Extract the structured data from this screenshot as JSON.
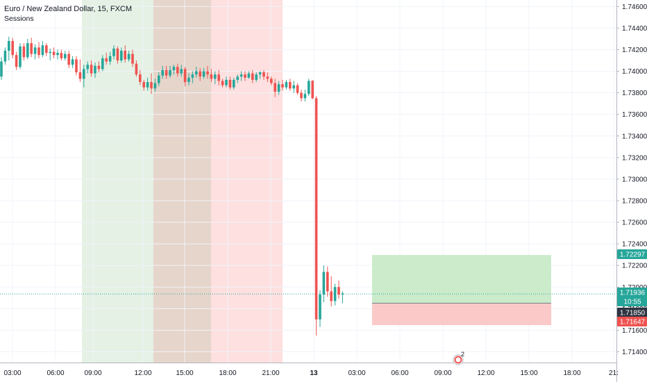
{
  "header": {
    "symbol_line": "Euro / New Zealand Dollar, 15, FXCM",
    "indicator": "Sessions"
  },
  "colors": {
    "up": "#26a69a",
    "down": "#ef5350",
    "session_asia": "#e4f1e4",
    "session_overlap": "#e6d5cb",
    "session_london": "#fde0df",
    "position_profit": "#cbebcb",
    "position_loss": "#fcc9c9"
  },
  "price_tags": [
    {
      "label": "1.72297",
      "value": 1.72297,
      "bg": "#26a69a"
    },
    {
      "label": "1.71936",
      "value": 1.71936,
      "bg": "#26a69a"
    },
    {
      "label": "10:55",
      "value": 1.71886,
      "bg": "#26a69a"
    },
    {
      "label": "1.71850",
      "value": 1.7185,
      "bg": "#2e3441"
    },
    {
      "label": "1.71647",
      "value": 1.71647,
      "bg": "#ef5350"
    }
  ],
  "marker_badge": "2",
  "chart_data": {
    "type": "candlestick",
    "timeframe": "15",
    "y_axis_ticks": [
      "1.74600",
      "1.74400",
      "1.74200",
      "1.74000",
      "1.73800",
      "1.73600",
      "1.73400",
      "1.73200",
      "1.73000",
      "1.72800",
      "1.72600",
      "1.72400",
      "1.72200",
      "1.72000",
      "1.71800",
      "1.71600",
      "1.71400"
    ],
    "x_axis_ticks": [
      "03:00",
      "06:00",
      "09:00",
      "12:00",
      "15:00",
      "18:00",
      "21:00",
      "13",
      "03:00",
      "06:00",
      "09:00",
      "12:00",
      "15:00",
      "18:00",
      "21:"
    ],
    "ylim": [
      1.713,
      1.7466
    ],
    "last_price": 1.71936,
    "candles": [
      [
        1.7395,
        1.7413,
        1.7392,
        1.7409
      ],
      [
        1.7409,
        1.7422,
        1.7406,
        1.7419
      ],
      [
        1.7419,
        1.7432,
        1.741,
        1.7428
      ],
      [
        1.7428,
        1.7431,
        1.7412,
        1.7415
      ],
      [
        1.7415,
        1.7418,
        1.7401,
        1.7404
      ],
      [
        1.7404,
        1.7426,
        1.7402,
        1.7423
      ],
      [
        1.7423,
        1.7426,
        1.741,
        1.7413
      ],
      [
        1.7413,
        1.743,
        1.7411,
        1.7426
      ],
      [
        1.7426,
        1.7431,
        1.7413,
        1.7416
      ],
      [
        1.7416,
        1.7425,
        1.7411,
        1.7422
      ],
      [
        1.7422,
        1.7427,
        1.7412,
        1.7415
      ],
      [
        1.7415,
        1.7428,
        1.7413,
        1.7424
      ],
      [
        1.7424,
        1.7426,
        1.7414,
        1.7417
      ],
      [
        1.7417,
        1.7421,
        1.741,
        1.7418
      ],
      [
        1.7418,
        1.7422,
        1.7412,
        1.7415
      ],
      [
        1.7415,
        1.742,
        1.7411,
        1.7417
      ],
      [
        1.7417,
        1.742,
        1.741,
        1.7412
      ],
      [
        1.7412,
        1.7419,
        1.741,
        1.7416
      ],
      [
        1.7416,
        1.7419,
        1.7403,
        1.7406
      ],
      [
        1.7406,
        1.7414,
        1.7403,
        1.7411
      ],
      [
        1.7411,
        1.7414,
        1.7396,
        1.7399
      ],
      [
        1.7399,
        1.7411,
        1.739,
        1.7393
      ],
      [
        1.7393,
        1.7406,
        1.7385,
        1.7402
      ],
      [
        1.7402,
        1.7409,
        1.7398,
        1.7406
      ],
      [
        1.7406,
        1.741,
        1.7395,
        1.7398
      ],
      [
        1.7398,
        1.7408,
        1.7394,
        1.7405
      ],
      [
        1.7405,
        1.7409,
        1.7399,
        1.7402
      ],
      [
        1.7402,
        1.7415,
        1.74,
        1.7412
      ],
      [
        1.7412,
        1.7417,
        1.7406,
        1.7409
      ],
      [
        1.7409,
        1.7418,
        1.7406,
        1.7414
      ],
      [
        1.7414,
        1.7424,
        1.7411,
        1.7421
      ],
      [
        1.7421,
        1.7423,
        1.7407,
        1.741
      ],
      [
        1.741,
        1.7422,
        1.7408,
        1.7419
      ],
      [
        1.7419,
        1.7424,
        1.7408,
        1.7411
      ],
      [
        1.7411,
        1.7419,
        1.7409,
        1.7416
      ],
      [
        1.7416,
        1.742,
        1.7404,
        1.7407
      ],
      [
        1.7407,
        1.741,
        1.7395,
        1.7397
      ],
      [
        1.7397,
        1.7401,
        1.7387,
        1.739
      ],
      [
        1.739,
        1.7392,
        1.7382,
        1.7385
      ],
      [
        1.7385,
        1.7394,
        1.7382,
        1.739
      ],
      [
        1.739,
        1.7398,
        1.7379,
        1.7384
      ],
      [
        1.7384,
        1.7393,
        1.7381,
        1.7389
      ],
      [
        1.7389,
        1.7399,
        1.7386,
        1.7396
      ],
      [
        1.7396,
        1.7405,
        1.7393,
        1.7401
      ],
      [
        1.7401,
        1.7405,
        1.7393,
        1.7396
      ],
      [
        1.7396,
        1.7405,
        1.7394,
        1.7401
      ],
      [
        1.7401,
        1.7406,
        1.7397,
        1.7404
      ],
      [
        1.7404,
        1.7407,
        1.7395,
        1.7398
      ],
      [
        1.7398,
        1.7406,
        1.7395,
        1.7402
      ],
      [
        1.7402,
        1.7404,
        1.7386,
        1.739
      ],
      [
        1.739,
        1.7398,
        1.7387,
        1.7394
      ],
      [
        1.7394,
        1.74,
        1.7389,
        1.7397
      ],
      [
        1.7397,
        1.7404,
        1.7394,
        1.74
      ],
      [
        1.74,
        1.7403,
        1.7391,
        1.7395
      ],
      [
        1.7395,
        1.7403,
        1.7393,
        1.74
      ],
      [
        1.74,
        1.7405,
        1.7393,
        1.7397
      ],
      [
        1.7397,
        1.7402,
        1.739,
        1.7393
      ],
      [
        1.7393,
        1.74,
        1.7388,
        1.7397
      ],
      [
        1.7397,
        1.7401,
        1.7387,
        1.7391
      ],
      [
        1.7391,
        1.7393,
        1.7385,
        1.7387
      ],
      [
        1.7387,
        1.7395,
        1.7385,
        1.7392
      ],
      [
        1.7392,
        1.7395,
        1.7383,
        1.7385
      ],
      [
        1.7385,
        1.7394,
        1.7383,
        1.7392
      ],
      [
        1.7392,
        1.7397,
        1.7389,
        1.7395
      ],
      [
        1.7395,
        1.74,
        1.7391,
        1.7397
      ],
      [
        1.7397,
        1.74,
        1.7391,
        1.7394
      ],
      [
        1.7394,
        1.74,
        1.7393,
        1.7398
      ],
      [
        1.7398,
        1.7401,
        1.7389,
        1.7392
      ],
      [
        1.7392,
        1.7399,
        1.739,
        1.7397
      ],
      [
        1.7397,
        1.74,
        1.7393,
        1.7399
      ],
      [
        1.7399,
        1.7401,
        1.7392,
        1.7395
      ],
      [
        1.7395,
        1.7399,
        1.739,
        1.7393
      ],
      [
        1.7393,
        1.7395,
        1.7387,
        1.7389
      ],
      [
        1.7389,
        1.7393,
        1.7376,
        1.7381
      ],
      [
        1.7381,
        1.7391,
        1.7378,
        1.7388
      ],
      [
        1.7388,
        1.7392,
        1.7382,
        1.7385
      ],
      [
        1.7385,
        1.7392,
        1.7383,
        1.739
      ],
      [
        1.739,
        1.7393,
        1.7382,
        1.7384
      ],
      [
        1.7384,
        1.7391,
        1.738,
        1.7387
      ],
      [
        1.7387,
        1.7389,
        1.7378,
        1.738
      ],
      [
        1.738,
        1.7383,
        1.7372,
        1.7375
      ],
      [
        1.7375,
        1.7383,
        1.7372,
        1.7379
      ],
      [
        1.7379,
        1.7393,
        1.7377,
        1.7391
      ],
      [
        1.7391,
        1.7392,
        1.7374,
        1.7375
      ],
      [
        1.7375,
        1.7377,
        1.7155,
        1.717
      ],
      [
        1.717,
        1.7197,
        1.7163,
        1.7193
      ],
      [
        1.7193,
        1.722,
        1.7186,
        1.7214
      ],
      [
        1.7214,
        1.7219,
        1.7191,
        1.7196
      ],
      [
        1.7196,
        1.721,
        1.7182,
        1.7187
      ],
      [
        1.7187,
        1.7203,
        1.7183,
        1.72
      ],
      [
        1.72,
        1.7206,
        1.7189,
        1.7193
      ],
      [
        1.7193,
        1.7196,
        1.7185,
        1.7194
      ]
    ],
    "sessions": [
      {
        "from": "08:00",
        "to": "13:00",
        "name": "asia"
      },
      {
        "from": "13:00",
        "to": "17:00",
        "name": "overlap"
      },
      {
        "from": "17:00",
        "to": "22:00",
        "name": "london"
      }
    ],
    "position": {
      "type": "long",
      "entry": 1.7185,
      "target": 1.72297,
      "stop": 1.71647
    }
  }
}
